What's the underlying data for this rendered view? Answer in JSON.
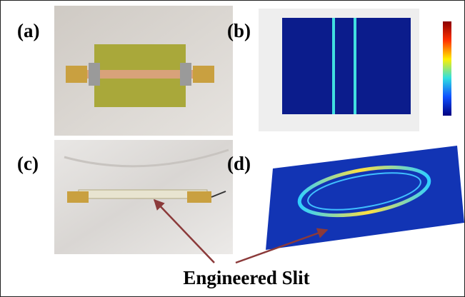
{
  "panel_labels": [
    "(a)",
    "(b)",
    "(c)",
    "(d)"
  ],
  "annotation": "Engineered Slit"
}
